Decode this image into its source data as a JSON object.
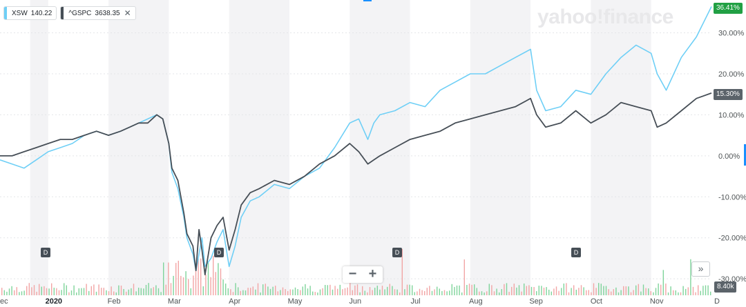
{
  "legend": {
    "xsw": {
      "name": "XSW",
      "value": "140.22",
      "color": "#6ecff6"
    },
    "gspc": {
      "name": "^GSPC",
      "value": "3638.35",
      "color": "#464e56",
      "close_icon": "close-icon",
      "close_glyph": "✕"
    }
  },
  "watermark": "yahoo!finance",
  "badges": {
    "xsw_last": "36.41%",
    "gspc_last": "15.30%",
    "volume_last": "8.40k"
  },
  "markers": {
    "dividend_label": "D"
  },
  "controls": {
    "zoom_out": "−",
    "zoom_in": "+",
    "expand_icon": "double-chevron-right-icon",
    "expand_glyph": "»"
  },
  "colors": {
    "xsw": "#6ecff6",
    "gspc": "#464e56",
    "volume_up": "#7fd49b",
    "volume_down": "#f2a5a5",
    "band": "#f3f3f5",
    "grid": "#e3e5e8"
  },
  "chart_data": {
    "type": "line",
    "title": "",
    "xlabel": "",
    "ylabel": "",
    "y_axis": {
      "ticks": [
        30,
        20,
        10,
        0,
        -10,
        -20,
        -30
      ],
      "tick_labels": [
        "30.00%",
        "20.00%",
        "10.00%",
        "0.00%",
        "-10.00%",
        "-20.00%",
        "-30.00%"
      ],
      "unit": "%"
    },
    "ylim": [
      -32,
      37
    ],
    "x_axis": {
      "labels": [
        "ec",
        "2020",
        "Feb",
        "Mar",
        "Apr",
        "May",
        "Jun",
        "Jul",
        "Aug",
        "Sep",
        "Oct",
        "Nov",
        "D"
      ],
      "label_months": [
        -0.5,
        0,
        1,
        2,
        3,
        4,
        5,
        6,
        7,
        8,
        9,
        10,
        11
      ],
      "year_label": "2020"
    },
    "xlim": [
      -0.8,
      11
    ],
    "shaded_month_bands": [
      [
        -0.3,
        0
      ],
      [
        1,
        2
      ],
      [
        3,
        4
      ],
      [
        5,
        6
      ],
      [
        7,
        8
      ],
      [
        9,
        10
      ]
    ],
    "dividend_markers_month": [
      0.2,
      2.75,
      5.6,
      8.6
    ],
    "series": [
      {
        "name": "XSW",
        "x": [
          -0.8,
          -0.6,
          -0.4,
          -0.2,
          0,
          0.2,
          0.4,
          0.6,
          0.8,
          1,
          1.2,
          1.35,
          1.5,
          1.65,
          1.8,
          1.9,
          2,
          2.05,
          2.15,
          2.25,
          2.3,
          2.4,
          2.45,
          2.5,
          2.55,
          2.6,
          2.7,
          2.8,
          2.9,
          3,
          3.1,
          3.2,
          3.35,
          3.5,
          3.75,
          4,
          4.25,
          4.5,
          4.75,
          5,
          5.15,
          5.3,
          5.4,
          5.5,
          5.75,
          6,
          6.25,
          6.5,
          6.75,
          7,
          7.25,
          7.5,
          7.75,
          8,
          8.1,
          8.25,
          8.5,
          8.75,
          9,
          9.25,
          9.5,
          9.75,
          10,
          10.1,
          10.25,
          10.5,
          10.75,
          11
        ],
        "values": [
          -1,
          -2,
          -3,
          -1,
          1,
          2,
          3,
          5,
          6,
          5,
          6,
          7,
          8,
          9,
          10,
          9,
          3,
          -4,
          -8,
          -15,
          -20,
          -24,
          -28,
          -24,
          -20,
          -27,
          -25,
          -21,
          -18,
          -27,
          -22,
          -15,
          -11,
          -10,
          -7,
          -8,
          -5,
          -3,
          2,
          8,
          9,
          4,
          8,
          10,
          11,
          13,
          12,
          16,
          18,
          20,
          20,
          22,
          24,
          26,
          16,
          11,
          12,
          16,
          15,
          20,
          24,
          27,
          25,
          20,
          16,
          24,
          29,
          36.41
        ]
      },
      {
        "name": "^GSPC",
        "x": [
          -0.8,
          -0.6,
          -0.4,
          -0.2,
          0,
          0.2,
          0.4,
          0.6,
          0.8,
          1,
          1.2,
          1.35,
          1.5,
          1.65,
          1.8,
          1.9,
          2,
          2.05,
          2.15,
          2.25,
          2.3,
          2.4,
          2.45,
          2.5,
          2.55,
          2.6,
          2.7,
          2.8,
          2.9,
          3,
          3.1,
          3.2,
          3.35,
          3.5,
          3.75,
          4,
          4.25,
          4.5,
          4.75,
          5,
          5.15,
          5.3,
          5.4,
          5.5,
          5.75,
          6,
          6.25,
          6.5,
          6.75,
          7,
          7.25,
          7.5,
          7.75,
          8,
          8.1,
          8.25,
          8.5,
          8.75,
          9,
          9.25,
          9.5,
          9.75,
          10,
          10.1,
          10.25,
          10.5,
          10.75,
          11
        ],
        "values": [
          0,
          0,
          1,
          2,
          3,
          4,
          4,
          5,
          6,
          5,
          6,
          7,
          8,
          8,
          10,
          9,
          3,
          -3,
          -6,
          -14,
          -19,
          -22,
          -28,
          -18,
          -23,
          -29,
          -20,
          -17,
          -15,
          -23,
          -18,
          -12,
          -9,
          -8,
          -6,
          -7,
          -5,
          -2,
          0,
          3,
          1,
          -2,
          -1,
          0,
          2,
          4,
          5,
          6,
          8,
          9,
          10,
          11,
          12,
          14,
          10,
          7,
          8,
          11,
          8,
          10,
          13,
          12,
          11,
          7,
          8,
          11,
          14,
          15.3
        ]
      }
    ]
  }
}
